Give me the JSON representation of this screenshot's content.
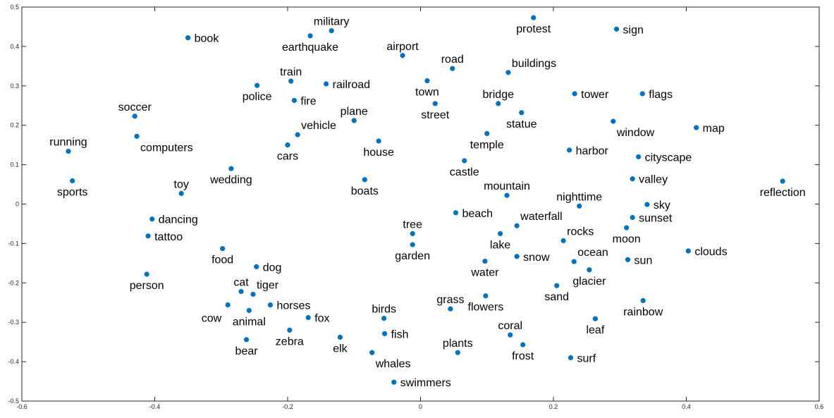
{
  "chart_data": {
    "type": "scatter",
    "xlim": [
      -0.6,
      0.6
    ],
    "ylim": [
      -0.5,
      0.5
    ],
    "grid": false,
    "marker_color": "#0072BD",
    "axis_color": "#262626",
    "xticks": [
      -0.6,
      -0.4,
      -0.2,
      0,
      0.2,
      0.4,
      0.6
    ],
    "yticks": [
      0.5,
      0.4,
      0.3,
      0.2,
      0.1,
      0,
      -0.1,
      -0.2,
      -0.3,
      -0.4,
      -0.5
    ],
    "xtick_labels": [
      "-0.6",
      "-0.4",
      "-0.2",
      "0",
      "0.2",
      "0.4",
      "0.6"
    ],
    "ytick_labels": [
      "0.5",
      "0.4",
      "0.3",
      "0.2",
      "0.1",
      "0",
      "-0.1",
      "-0.2",
      "-0.3",
      "-0.4",
      "-0.5"
    ],
    "points": [
      {
        "label": "book",
        "x": -0.35,
        "y": 0.422,
        "pos": "right"
      },
      {
        "label": "military",
        "x": -0.134,
        "y": 0.44,
        "pos": "above"
      },
      {
        "label": "earthquake",
        "x": -0.166,
        "y": 0.427,
        "pos": "below"
      },
      {
        "label": "airport",
        "x": -0.027,
        "y": 0.377,
        "pos": "above"
      },
      {
        "label": "protest",
        "x": 0.17,
        "y": 0.473,
        "pos": "below"
      },
      {
        "label": "sign",
        "x": 0.295,
        "y": 0.444,
        "pos": "right"
      },
      {
        "label": "road",
        "x": 0.048,
        "y": 0.344,
        "pos": "above"
      },
      {
        "label": "buildings",
        "x": 0.132,
        "y": 0.334,
        "pos": "above-right"
      },
      {
        "label": "train",
        "x": -0.195,
        "y": 0.312,
        "pos": "above"
      },
      {
        "label": "railroad",
        "x": -0.142,
        "y": 0.305,
        "pos": "right"
      },
      {
        "label": "police",
        "x": -0.246,
        "y": 0.301,
        "pos": "below"
      },
      {
        "label": "town",
        "x": 0.01,
        "y": 0.313,
        "pos": "below"
      },
      {
        "label": "fire",
        "x": -0.19,
        "y": 0.263,
        "pos": "right"
      },
      {
        "label": "tower",
        "x": 0.232,
        "y": 0.28,
        "pos": "right"
      },
      {
        "label": "flags",
        "x": 0.334,
        "y": 0.28,
        "pos": "right"
      },
      {
        "label": "bridge",
        "x": 0.117,
        "y": 0.255,
        "pos": "above"
      },
      {
        "label": "soccer",
        "x": -0.43,
        "y": 0.223,
        "pos": "above"
      },
      {
        "label": "street",
        "x": 0.022,
        "y": 0.255,
        "pos": "below"
      },
      {
        "label": "plane",
        "x": -0.1,
        "y": 0.212,
        "pos": "above"
      },
      {
        "label": "statue",
        "x": 0.152,
        "y": 0.232,
        "pos": "below"
      },
      {
        "label": "window",
        "x": 0.29,
        "y": 0.21,
        "pos": "below-right"
      },
      {
        "label": "vehicle",
        "x": -0.185,
        "y": 0.176,
        "pos": "above-right"
      },
      {
        "label": "map",
        "x": 0.415,
        "y": 0.194,
        "pos": "right"
      },
      {
        "label": "computers",
        "x": -0.427,
        "y": 0.172,
        "pos": "below-right"
      },
      {
        "label": "temple",
        "x": 0.1,
        "y": 0.179,
        "pos": "below"
      },
      {
        "label": "running",
        "x": -0.53,
        "y": 0.134,
        "pos": "above"
      },
      {
        "label": "cars",
        "x": -0.2,
        "y": 0.15,
        "pos": "below"
      },
      {
        "label": "house",
        "x": -0.063,
        "y": 0.16,
        "pos": "below"
      },
      {
        "label": "harbor",
        "x": 0.224,
        "y": 0.137,
        "pos": "right"
      },
      {
        "label": "cityscape",
        "x": 0.328,
        "y": 0.12,
        "pos": "right"
      },
      {
        "label": "castle",
        "x": 0.066,
        "y": 0.11,
        "pos": "below"
      },
      {
        "label": "wedding",
        "x": -0.285,
        "y": 0.09,
        "pos": "below"
      },
      {
        "label": "valley",
        "x": 0.319,
        "y": 0.064,
        "pos": "right"
      },
      {
        "label": "boats",
        "x": -0.084,
        "y": 0.062,
        "pos": "below"
      },
      {
        "label": "reflection",
        "x": 0.545,
        "y": 0.058,
        "pos": "below"
      },
      {
        "label": "sports",
        "x": -0.524,
        "y": 0.059,
        "pos": "below"
      },
      {
        "label": "toy",
        "x": -0.36,
        "y": 0.027,
        "pos": "above"
      },
      {
        "label": "mountain",
        "x": 0.13,
        "y": 0.022,
        "pos": "above"
      },
      {
        "label": "nighttime",
        "x": 0.239,
        "y": -0.005,
        "pos": "above"
      },
      {
        "label": "sky",
        "x": 0.341,
        "y": -0.001,
        "pos": "right"
      },
      {
        "label": "beach",
        "x": 0.053,
        "y": -0.022,
        "pos": "right"
      },
      {
        "label": "waterfall",
        "x": 0.145,
        "y": -0.055,
        "pos": "above-right"
      },
      {
        "label": "dancing",
        "x": -0.404,
        "y": -0.038,
        "pos": "right"
      },
      {
        "label": "sunset",
        "x": 0.319,
        "y": -0.034,
        "pos": "right"
      },
      {
        "label": "tree",
        "x": -0.012,
        "y": -0.075,
        "pos": "above"
      },
      {
        "label": "moon",
        "x": 0.31,
        "y": -0.06,
        "pos": "below"
      },
      {
        "label": "tattoo",
        "x": -0.41,
        "y": -0.081,
        "pos": "right"
      },
      {
        "label": "rocks",
        "x": 0.215,
        "y": -0.093,
        "pos": "above-right"
      },
      {
        "label": "lake",
        "x": 0.12,
        "y": -0.075,
        "pos": "below"
      },
      {
        "label": "garden",
        "x": -0.012,
        "y": -0.103,
        "pos": "below"
      },
      {
        "label": "food",
        "x": -0.298,
        "y": -0.113,
        "pos": "below"
      },
      {
        "label": "clouds",
        "x": 0.403,
        "y": -0.119,
        "pos": "right"
      },
      {
        "label": "snow",
        "x": 0.145,
        "y": -0.133,
        "pos": "right"
      },
      {
        "label": "ocean",
        "x": 0.231,
        "y": -0.146,
        "pos": "above-right"
      },
      {
        "label": "sun",
        "x": 0.312,
        "y": -0.141,
        "pos": "right"
      },
      {
        "label": "water",
        "x": 0.097,
        "y": -0.145,
        "pos": "below"
      },
      {
        "label": "dog",
        "x": -0.247,
        "y": -0.159,
        "pos": "right"
      },
      {
        "label": "glacier",
        "x": 0.254,
        "y": -0.167,
        "pos": "below"
      },
      {
        "label": "person",
        "x": -0.412,
        "y": -0.178,
        "pos": "below"
      },
      {
        "label": "sand",
        "x": 0.205,
        "y": -0.207,
        "pos": "below"
      },
      {
        "label": "cat",
        "x": -0.27,
        "y": -0.222,
        "pos": "above"
      },
      {
        "label": "tiger",
        "x": -0.252,
        "y": -0.229,
        "pos": "above-right"
      },
      {
        "label": "flowers",
        "x": 0.098,
        "y": -0.233,
        "pos": "below"
      },
      {
        "label": "rainbow",
        "x": 0.335,
        "y": -0.245,
        "pos": "below"
      },
      {
        "label": "cow",
        "x": -0.29,
        "y": -0.256,
        "pos": "left"
      },
      {
        "label": "horses",
        "x": -0.226,
        "y": -0.256,
        "pos": "right"
      },
      {
        "label": "grass",
        "x": 0.045,
        "y": -0.266,
        "pos": "above"
      },
      {
        "label": "animal",
        "x": -0.258,
        "y": -0.27,
        "pos": "below"
      },
      {
        "label": "birds",
        "x": -0.055,
        "y": -0.29,
        "pos": "above"
      },
      {
        "label": "fox",
        "x": -0.169,
        "y": -0.288,
        "pos": "right"
      },
      {
        "label": "leaf",
        "x": 0.263,
        "y": -0.291,
        "pos": "below"
      },
      {
        "label": "zebra",
        "x": -0.197,
        "y": -0.32,
        "pos": "below"
      },
      {
        "label": "fish",
        "x": -0.054,
        "y": -0.329,
        "pos": "right"
      },
      {
        "label": "coral",
        "x": 0.135,
        "y": -0.332,
        "pos": "above"
      },
      {
        "label": "elk",
        "x": -0.121,
        "y": -0.338,
        "pos": "below"
      },
      {
        "label": "bear",
        "x": -0.262,
        "y": -0.344,
        "pos": "below"
      },
      {
        "label": "frost",
        "x": 0.154,
        "y": -0.357,
        "pos": "below"
      },
      {
        "label": "whales",
        "x": -0.073,
        "y": -0.377,
        "pos": "below-right"
      },
      {
        "label": "plants",
        "x": 0.056,
        "y": -0.377,
        "pos": "above"
      },
      {
        "label": "surf",
        "x": 0.226,
        "y": -0.39,
        "pos": "right"
      },
      {
        "label": "swimmers",
        "x": -0.04,
        "y": -0.452,
        "pos": "right"
      }
    ]
  }
}
